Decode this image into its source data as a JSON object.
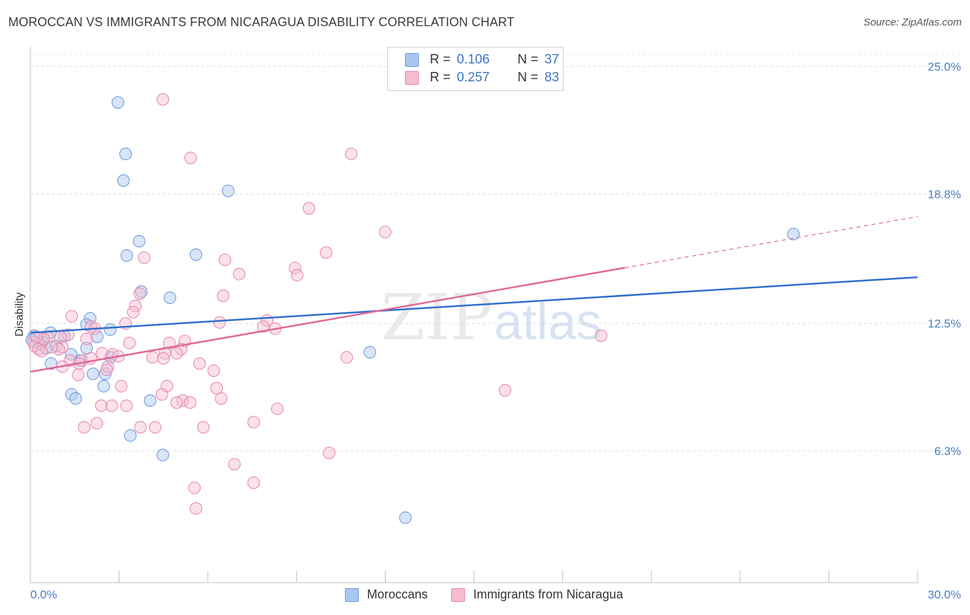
{
  "title": "MOROCCAN VS IMMIGRANTS FROM NICARAGUA DISABILITY CORRELATION CHART",
  "source": "Source: ZipAtlas.com",
  "watermark": {
    "zip": "ZIP",
    "atlas": "atlas"
  },
  "colors": {
    "blue_fill": "#a9c6ee",
    "blue_stroke": "#6f9be0",
    "blue_line": "#2f6fcc",
    "pink_fill": "#f5bcd0",
    "pink_stroke": "#e88aab",
    "pink_line": "#e06791",
    "accent_text": "#3a73c8"
  },
  "legend": {
    "rows": [
      {
        "r_label": "R =",
        "r_value": "0.106",
        "n_label": "N =",
        "n_value": "37",
        "color": "#a9c6ee"
      },
      {
        "r_label": "R =",
        "r_value": "0.257",
        "n_label": "N =",
        "n_value": "83",
        "color": "#f5bcd0"
      }
    ]
  },
  "bottom_legend": [
    {
      "label": "Moroccans",
      "color": "#a9c6ee"
    },
    {
      "label": "Immigrants from Nicaragua",
      "color": "#f5bcd0"
    }
  ],
  "chart_data": {
    "type": "scatter",
    "title": "MOROCCAN VS IMMIGRANTS FROM NICARAGUA DISABILITY CORRELATION CHART",
    "xlabel": "",
    "ylabel": "Disability",
    "xlim": [
      0,
      30
    ],
    "ylim": [
      0,
      25.5
    ],
    "x_tick_labels": [
      "0.0%",
      "30.0%"
    ],
    "y_ticks": [
      6.3,
      12.5,
      18.8,
      25.0
    ],
    "y_tick_labels": [
      "6.3%",
      "12.5%",
      "18.8%",
      "25.0%"
    ],
    "legend_position": "top-center",
    "grid": true,
    "series": [
      {
        "name": "Moroccans",
        "R": 0.106,
        "N": 37,
        "trend": {
          "x": [
            0,
            30
          ],
          "y": [
            12.05,
            14.75
          ],
          "dashed_from": null
        },
        "points": [
          [
            2.96,
            23.25
          ],
          [
            3.22,
            20.75
          ],
          [
            3.15,
            19.45
          ],
          [
            6.69,
            18.95
          ],
          [
            3.68,
            16.5
          ],
          [
            3.26,
            15.8
          ],
          [
            5.6,
            15.85
          ],
          [
            3.75,
            14.05
          ],
          [
            4.72,
            13.75
          ],
          [
            2.02,
            12.75
          ],
          [
            1.9,
            12.45
          ],
          [
            2.7,
            12.2
          ],
          [
            0.68,
            12.05
          ],
          [
            0.4,
            11.6
          ],
          [
            1.15,
            11.9
          ],
          [
            2.26,
            11.85
          ],
          [
            0.88,
            11.4
          ],
          [
            0.53,
            11.3
          ],
          [
            1.9,
            11.3
          ],
          [
            0.34,
            11.5
          ],
          [
            1.38,
            11.0
          ],
          [
            0.7,
            10.55
          ],
          [
            1.68,
            10.7
          ],
          [
            2.12,
            10.05
          ],
          [
            2.53,
            10.05
          ],
          [
            2.72,
            10.85
          ],
          [
            2.48,
            9.45
          ],
          [
            1.39,
            9.05
          ],
          [
            1.53,
            8.85
          ],
          [
            4.05,
            8.75
          ],
          [
            3.38,
            7.05
          ],
          [
            4.48,
            6.1
          ],
          [
            12.68,
            3.05
          ],
          [
            11.48,
            11.1
          ],
          [
            25.8,
            16.85
          ],
          [
            0.12,
            11.9
          ],
          [
            0.05,
            11.7
          ]
        ]
      },
      {
        "name": "Immigrants from Nicaragua",
        "R": 0.257,
        "N": 83,
        "trend": {
          "x": [
            0,
            30
          ],
          "y": [
            10.15,
            17.7
          ],
          "dashed_from": 20.1
        },
        "points": [
          [
            4.48,
            23.4
          ],
          [
            5.42,
            20.55
          ],
          [
            10.85,
            20.75
          ],
          [
            9.42,
            18.1
          ],
          [
            12.0,
            16.95
          ],
          [
            10.0,
            15.95
          ],
          [
            3.85,
            15.7
          ],
          [
            6.58,
            15.6
          ],
          [
            8.95,
            15.2
          ],
          [
            9.02,
            14.85
          ],
          [
            7.06,
            14.9
          ],
          [
            3.7,
            13.95
          ],
          [
            6.52,
            13.85
          ],
          [
            3.55,
            13.35
          ],
          [
            3.48,
            13.05
          ],
          [
            1.4,
            12.85
          ],
          [
            6.4,
            12.55
          ],
          [
            8.0,
            12.65
          ],
          [
            3.22,
            12.5
          ],
          [
            7.88,
            12.35
          ],
          [
            8.28,
            12.25
          ],
          [
            2.05,
            12.35
          ],
          [
            2.18,
            12.25
          ],
          [
            1.28,
            11.95
          ],
          [
            1.02,
            11.85
          ],
          [
            1.9,
            11.75
          ],
          [
            0.58,
            11.85
          ],
          [
            4.7,
            11.55
          ],
          [
            5.22,
            11.65
          ],
          [
            3.35,
            11.55
          ],
          [
            1.08,
            11.35
          ],
          [
            0.96,
            11.25
          ],
          [
            4.55,
            11.05
          ],
          [
            5.1,
            11.25
          ],
          [
            4.95,
            11.05
          ],
          [
            2.42,
            11.05
          ],
          [
            2.78,
            11.0
          ],
          [
            2.98,
            10.9
          ],
          [
            4.13,
            10.85
          ],
          [
            4.5,
            10.8
          ],
          [
            1.34,
            10.7
          ],
          [
            1.75,
            10.7
          ],
          [
            2.05,
            10.8
          ],
          [
            2.62,
            10.4
          ],
          [
            10.7,
            10.85
          ],
          [
            5.72,
            10.55
          ],
          [
            6.2,
            10.2
          ],
          [
            1.08,
            10.4
          ],
          [
            1.65,
            10.55
          ],
          [
            1.62,
            10.0
          ],
          [
            2.58,
            10.25
          ],
          [
            3.07,
            9.45
          ],
          [
            4.62,
            9.45
          ],
          [
            6.3,
            9.35
          ],
          [
            4.45,
            9.05
          ],
          [
            6.45,
            8.85
          ],
          [
            5.15,
            8.75
          ],
          [
            5.4,
            8.65
          ],
          [
            4.95,
            8.65
          ],
          [
            2.4,
            8.5
          ],
          [
            2.75,
            8.5
          ],
          [
            3.25,
            8.5
          ],
          [
            8.35,
            8.35
          ],
          [
            7.55,
            7.7
          ],
          [
            2.25,
            7.65
          ],
          [
            1.82,
            7.45
          ],
          [
            3.72,
            7.45
          ],
          [
            4.22,
            7.45
          ],
          [
            5.85,
            7.45
          ],
          [
            10.1,
            6.2
          ],
          [
            6.9,
            5.65
          ],
          [
            7.55,
            4.75
          ],
          [
            5.55,
            4.5
          ],
          [
            5.6,
            3.5
          ],
          [
            16.05,
            9.25
          ],
          [
            19.3,
            11.9
          ],
          [
            0.1,
            11.6
          ],
          [
            0.15,
            11.4
          ],
          [
            0.28,
            11.25
          ],
          [
            0.45,
            11.75
          ],
          [
            0.72,
            11.35
          ],
          [
            0.38,
            11.15
          ],
          [
            0.22,
            11.85
          ]
        ]
      }
    ]
  }
}
